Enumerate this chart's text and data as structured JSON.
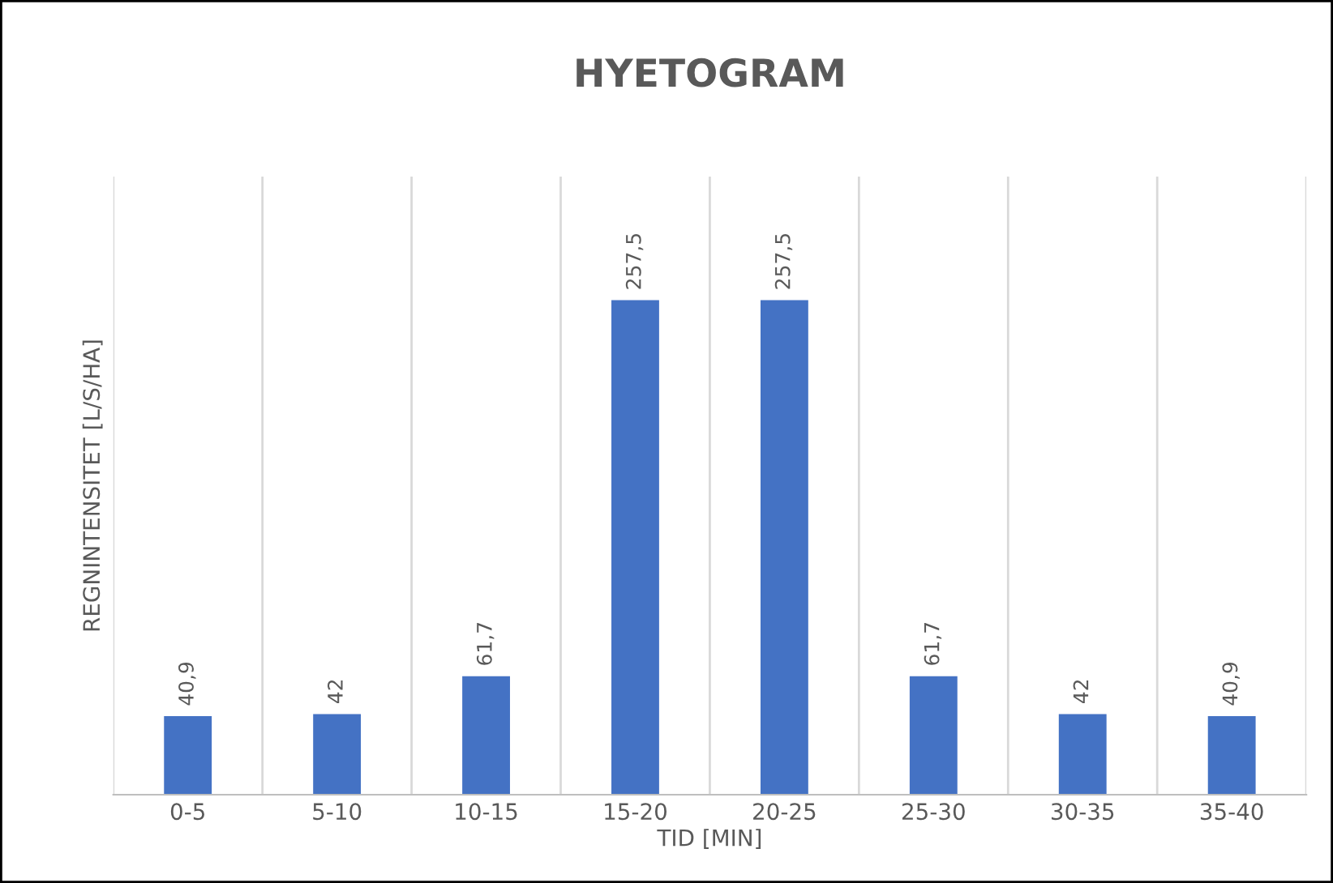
{
  "chart_data": {
    "type": "bar",
    "title": "HYETOGRAM",
    "xlabel": "TID [MIN]",
    "ylabel": "REGNINTENSITET [L/S/HA]",
    "categories": [
      "0-5",
      "5-10",
      "10-15",
      "15-20",
      "20-25",
      "25-30",
      "30-35",
      "35-40"
    ],
    "values": [
      40.9,
      42,
      61.7,
      257.5,
      257.5,
      61.7,
      42,
      40.9
    ],
    "value_labels": [
      "40,9",
      "42",
      "61,7",
      "257,5",
      "257,5",
      "61,7",
      "42",
      "40,9"
    ],
    "color": "#4472c4",
    "grid": "x",
    "tick_labels": "x"
  }
}
